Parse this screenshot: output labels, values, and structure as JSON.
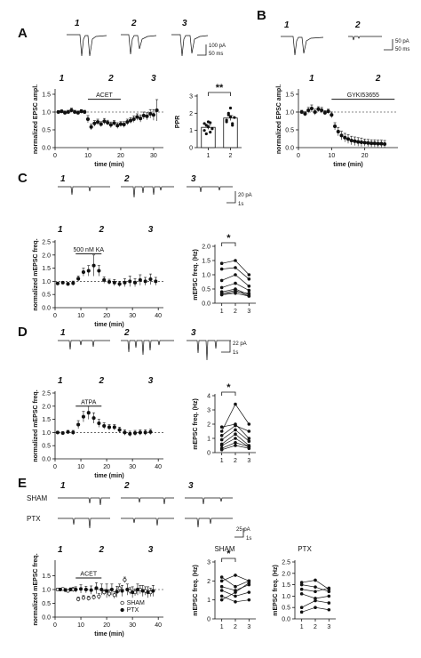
{
  "colors": {
    "ink": "#111111",
    "bar": "#ffffff"
  },
  "panels": {
    "A": {
      "letter": "A",
      "traces": [
        "1",
        "2",
        "3"
      ],
      "scalebar": [
        "100 pA",
        "50 ms"
      ]
    },
    "B": {
      "letter": "B",
      "traces": [
        "1",
        "2"
      ],
      "scalebar": [
        "50 pA",
        "50 ms"
      ]
    },
    "C": {
      "letter": "C",
      "traces": [
        "1",
        "2",
        "3"
      ],
      "scalebar": [
        "20 pA",
        "1s"
      ]
    },
    "D": {
      "letter": "D",
      "traces": [
        "1",
        "2",
        "3"
      ],
      "scalebar": [
        "22 pA",
        "1s"
      ]
    },
    "E": {
      "letter": "E",
      "traces": [
        "1",
        "2",
        "3"
      ],
      "rows": [
        "SHAM",
        "PTX"
      ],
      "scalebar": [
        "25 pA",
        "1s"
      ]
    }
  },
  "chart_data": [
    {
      "id": "A-time",
      "type": "scatter",
      "ylabel": "normalized EPSC ampl.",
      "xlabel": "time (min)",
      "xlim": [
        0,
        33
      ],
      "ylim": [
        0,
        1.6
      ],
      "xticks": [
        0,
        10,
        20,
        30
      ],
      "yticks": [
        0.0,
        0.5,
        1.0,
        1.5
      ],
      "baseline": 1.0,
      "epochs": [
        {
          "label": "1",
          "x": 2
        },
        {
          "label": "2",
          "x": 17
        },
        {
          "label": "3",
          "x": 30
        }
      ],
      "bar": {
        "label": "ACET",
        "x0": 10,
        "x1": 20,
        "y": 1.36
      },
      "series": [
        {
          "x": [
            1,
            2,
            3,
            4,
            5,
            6,
            7,
            8,
            9,
            10,
            11,
            12,
            13,
            14,
            15,
            16,
            17,
            18,
            19,
            20,
            21,
            22,
            23,
            24,
            25,
            26,
            27,
            28,
            29,
            30,
            31
          ],
          "y": [
            1.0,
            1.02,
            0.98,
            1.0,
            1.05,
            1.0,
            0.98,
            1.02,
            1.0,
            0.8,
            0.58,
            0.68,
            0.72,
            0.66,
            0.74,
            0.7,
            0.64,
            0.69,
            0.62,
            0.66,
            0.65,
            0.72,
            0.76,
            0.8,
            0.86,
            0.82,
            0.9,
            0.88,
            0.95,
            0.92,
            1.05
          ],
          "err": [
            0.04,
            0.04,
            0.05,
            0.05,
            0.06,
            0.05,
            0.05,
            0.05,
            0.05,
            0.1,
            0.08,
            0.08,
            0.08,
            0.07,
            0.08,
            0.07,
            0.08,
            0.07,
            0.08,
            0.07,
            0.08,
            0.08,
            0.08,
            0.09,
            0.09,
            0.1,
            0.1,
            0.1,
            0.12,
            0.15,
            0.3
          ]
        }
      ]
    },
    {
      "id": "A-ppr",
      "type": "bar",
      "ylabel": "PPR",
      "categories": [
        "1",
        "2"
      ],
      "ylim": [
        0,
        3
      ],
      "yticks": [
        0,
        1,
        2,
        3
      ],
      "values": [
        1.18,
        1.72
      ],
      "err": [
        0.12,
        0.14
      ],
      "points": [
        [
          1.0,
          1.3,
          1.5,
          0.9,
          1.1,
          1.4,
          0.8,
          1.2,
          1.45
        ],
        [
          1.6,
          1.9,
          2.3,
          1.4,
          1.75,
          1.5,
          2.0,
          1.8,
          1.3
        ]
      ],
      "significance": "**"
    },
    {
      "id": "B-time",
      "type": "scatter",
      "ylabel": "normalized EPSC ampl.",
      "xlabel": "time (min)",
      "xlim": [
        0,
        30
      ],
      "ylim": [
        0,
        1.6
      ],
      "xticks": [
        0,
        10,
        20
      ],
      "yticks": [
        0.0,
        0.5,
        1.0,
        1.5
      ],
      "baseline": 1.0,
      "epochs": [
        {
          "label": "1",
          "x": 4
        },
        {
          "label": "2",
          "x": 24
        }
      ],
      "bar": {
        "label": "GYKI53655",
        "x0": 10,
        "x1": 29,
        "y": 1.36
      },
      "series": [
        {
          "x": [
            1,
            2,
            3,
            4,
            5,
            6,
            7,
            8,
            9,
            10,
            11,
            12,
            13,
            14,
            15,
            16,
            17,
            18,
            19,
            20,
            21,
            22,
            23,
            24,
            25,
            26
          ],
          "y": [
            1.0,
            0.95,
            1.05,
            1.1,
            1.0,
            1.08,
            1.05,
            0.98,
            1.02,
            0.92,
            0.6,
            0.45,
            0.34,
            0.28,
            0.24,
            0.2,
            0.18,
            0.16,
            0.15,
            0.14,
            0.13,
            0.12,
            0.12,
            0.11,
            0.11,
            0.1
          ],
          "err": [
            0.05,
            0.06,
            0.08,
            0.1,
            0.08,
            0.07,
            0.08,
            0.06,
            0.06,
            0.08,
            0.1,
            0.12,
            0.12,
            0.12,
            0.12,
            0.12,
            0.12,
            0.12,
            0.12,
            0.1,
            0.1,
            0.1,
            0.1,
            0.1,
            0.1,
            0.1
          ]
        }
      ]
    },
    {
      "id": "C-time",
      "type": "scatter",
      "ylabel": "normalized mEPSC freq.",
      "xlabel": "time (min)",
      "xlim": [
        0,
        42
      ],
      "ylim": [
        0,
        2.5
      ],
      "xticks": [
        0,
        10,
        20,
        30,
        40
      ],
      "yticks": [
        0.0,
        0.5,
        1.0,
        1.5,
        2.0,
        2.5
      ],
      "baseline": 1.0,
      "epochs": [
        {
          "label": "1",
          "x": 2
        },
        {
          "label": "2",
          "x": 18
        },
        {
          "label": "3",
          "x": 37
        }
      ],
      "bar": {
        "label": "500 nM KA",
        "x0": 8,
        "x1": 18,
        "y": 2.05
      },
      "series": [
        {
          "x": [
            1,
            3,
            5,
            7,
            9,
            11,
            13,
            15,
            17,
            19,
            21,
            23,
            25,
            27,
            29,
            31,
            33,
            35,
            37,
            39
          ],
          "y": [
            0.92,
            0.95,
            0.9,
            0.93,
            1.1,
            1.35,
            1.4,
            1.6,
            1.4,
            1.05,
            0.98,
            0.95,
            0.9,
            0.95,
            1.0,
            0.95,
            1.05,
            1.0,
            1.08,
            1.0
          ],
          "err": [
            0.05,
            0.05,
            0.06,
            0.08,
            0.1,
            0.15,
            0.2,
            0.4,
            0.2,
            0.12,
            0.1,
            0.12,
            0.1,
            0.15,
            0.2,
            0.15,
            0.2,
            0.15,
            0.2,
            0.15
          ]
        }
      ]
    },
    {
      "id": "C-paired",
      "type": "line",
      "ylabel": "mEPSC freq. (Hz)",
      "categories": [
        "1",
        "2",
        "3"
      ],
      "ylim": [
        0,
        2.0
      ],
      "yticks": [
        0.0,
        0.5,
        1.0,
        1.5,
        2.0
      ],
      "significance": "*",
      "series": [
        {
          "values": [
            1.4,
            1.5,
            1.0
          ]
        },
        {
          "values": [
            1.2,
            1.25,
            0.85
          ]
        },
        {
          "values": [
            0.8,
            1.0,
            0.6
          ]
        },
        {
          "values": [
            0.55,
            0.7,
            0.45
          ]
        },
        {
          "values": [
            0.4,
            0.5,
            0.3
          ]
        },
        {
          "values": [
            0.35,
            0.45,
            0.25
          ]
        },
        {
          "values": [
            0.3,
            0.4,
            0.35
          ]
        },
        {
          "values": [
            0.3,
            0.35,
            0.25
          ]
        }
      ]
    },
    {
      "id": "D-time",
      "type": "scatter",
      "ylabel": "normalized mEPSC freq.",
      "xlabel": "time (min)",
      "xlim": [
        0,
        42
      ],
      "ylim": [
        0,
        2.5
      ],
      "xticks": [
        0,
        10,
        20,
        30,
        40
      ],
      "yticks": [
        0.0,
        0.5,
        1.0,
        1.5,
        2.0,
        2.5
      ],
      "baseline": 1.0,
      "epochs": [
        {
          "label": "1",
          "x": 2
        },
        {
          "label": "2",
          "x": 18
        },
        {
          "label": "3",
          "x": 37
        }
      ],
      "bar": {
        "label": "ATPA",
        "x0": 8,
        "x1": 18,
        "y": 2.0
      },
      "series": [
        {
          "x": [
            1,
            3,
            5,
            7,
            9,
            11,
            13,
            15,
            17,
            19,
            21,
            23,
            25,
            27,
            29,
            31,
            33,
            35,
            37
          ],
          "y": [
            1.0,
            0.98,
            1.02,
            1.0,
            1.3,
            1.6,
            1.75,
            1.55,
            1.35,
            1.25,
            1.2,
            1.2,
            1.1,
            1.0,
            0.95,
            0.98,
            1.0,
            1.0,
            1.02
          ],
          "err": [
            0.05,
            0.05,
            0.06,
            0.08,
            0.15,
            0.2,
            0.25,
            0.2,
            0.15,
            0.12,
            0.1,
            0.1,
            0.1,
            0.1,
            0.1,
            0.1,
            0.1,
            0.1,
            0.1
          ]
        }
      ]
    },
    {
      "id": "D-paired",
      "type": "line",
      "ylabel": "mEPSC freq. (Hz)",
      "categories": [
        "1",
        "2",
        "3"
      ],
      "ylim": [
        0,
        4
      ],
      "yticks": [
        0,
        1,
        2,
        3,
        4
      ],
      "significance": "*",
      "series": [
        {
          "values": [
            1.5,
            3.4,
            2.0
          ]
        },
        {
          "values": [
            1.8,
            2.0,
            1.0
          ]
        },
        {
          "values": [
            1.2,
            1.9,
            1.5
          ]
        },
        {
          "values": [
            0.9,
            1.6,
            0.8
          ]
        },
        {
          "values": [
            0.6,
            1.3,
            0.5
          ]
        },
        {
          "values": [
            0.5,
            1.0,
            0.4
          ]
        },
        {
          "values": [
            0.3,
            0.7,
            0.4
          ]
        },
        {
          "values": [
            0.2,
            0.5,
            0.3
          ]
        }
      ]
    },
    {
      "id": "E-time",
      "type": "scatter",
      "ylabel": "normalized mEPSC freq.",
      "xlabel": "time (min)",
      "xlim": [
        0,
        42
      ],
      "ylim": [
        0,
        2.0
      ],
      "xticks": [
        0,
        10,
        20,
        30,
        40
      ],
      "yticks": [
        0.0,
        0.5,
        1.0,
        1.5
      ],
      "baseline": 1.0,
      "epochs": [
        {
          "label": "1",
          "x": 2
        },
        {
          "label": "2",
          "x": 18
        },
        {
          "label": "3",
          "x": 37
        }
      ],
      "bar": {
        "label": "ACET",
        "x0": 8,
        "x1": 18,
        "y": 1.42
      },
      "legend": [
        "SHAM",
        "PTX"
      ],
      "series": [
        {
          "name": "SHAM",
          "marker": "open",
          "x": [
            1,
            3,
            5,
            7,
            9,
            11,
            13,
            15,
            17,
            19,
            21,
            23,
            25,
            27,
            29,
            31,
            33,
            35,
            37
          ],
          "y": [
            1.0,
            1.02,
            0.95,
            1.0,
            0.65,
            0.7,
            0.68,
            0.72,
            0.75,
            0.9,
            0.85,
            0.8,
            1.05,
            1.35,
            0.95,
            0.9,
            1.0,
            0.95,
            0.9
          ],
          "err": [
            0.05,
            0.05,
            0.05,
            0.08,
            0.08,
            0.08,
            0.08,
            0.08,
            0.1,
            0.1,
            0.12,
            0.12,
            0.15,
            0.1,
            0.12,
            0.12,
            0.15,
            0.15,
            0.15
          ]
        },
        {
          "name": "PTX",
          "marker": "filled",
          "x": [
            2,
            4,
            6,
            8,
            10,
            12,
            14,
            16,
            18,
            20,
            22,
            24,
            26,
            28,
            30,
            32,
            34,
            36,
            38
          ],
          "y": [
            1.0,
            0.98,
            1.0,
            1.0,
            1.02,
            1.0,
            0.98,
            1.05,
            1.0,
            0.95,
            1.0,
            0.92,
            0.95,
            1.0,
            0.9,
            1.0,
            0.95,
            0.9,
            0.95
          ],
          "err": [
            0.05,
            0.06,
            0.06,
            0.1,
            0.15,
            0.12,
            0.15,
            0.2,
            0.2,
            0.25,
            0.2,
            0.2,
            0.2,
            0.2,
            0.2,
            0.2,
            0.2,
            0.2,
            0.2
          ]
        }
      ]
    },
    {
      "id": "E-sham",
      "type": "line",
      "title": "SHAM",
      "ylabel": "mEPSC freq. (Hz)",
      "categories": [
        "1",
        "2",
        "3"
      ],
      "ylim": [
        0,
        3
      ],
      "yticks": [
        0,
        1,
        2,
        3
      ],
      "significance": "*",
      "series": [
        {
          "values": [
            2.2,
            1.7,
            2.0
          ]
        },
        {
          "values": [
            2.0,
            2.3,
            2.0
          ]
        },
        {
          "values": [
            1.7,
            1.5,
            1.8
          ]
        },
        {
          "values": [
            1.5,
            1.2,
            1.4
          ]
        },
        {
          "values": [
            1.2,
            0.9,
            1.0
          ]
        },
        {
          "values": [
            1.0,
            1.4,
            1.9
          ]
        }
      ]
    },
    {
      "id": "E-ptx",
      "type": "line",
      "title": "PTX",
      "ylabel": "mEPSC freq. (Hz)",
      "categories": [
        "1",
        "2",
        "3"
      ],
      "ylim": [
        0,
        2.5
      ],
      "yticks": [
        0.0,
        0.5,
        1.0,
        1.5,
        2.0,
        2.5
      ],
      "series": [
        {
          "values": [
            1.6,
            1.7,
            1.3
          ]
        },
        {
          "values": [
            1.5,
            1.4,
            1.2
          ]
        },
        {
          "values": [
            1.3,
            1.2,
            1.35
          ]
        },
        {
          "values": [
            1.1,
            0.9,
            1.0
          ]
        },
        {
          "values": [
            0.5,
            0.8,
            0.7
          ]
        },
        {
          "values": [
            0.3,
            0.5,
            0.4
          ]
        }
      ]
    }
  ]
}
